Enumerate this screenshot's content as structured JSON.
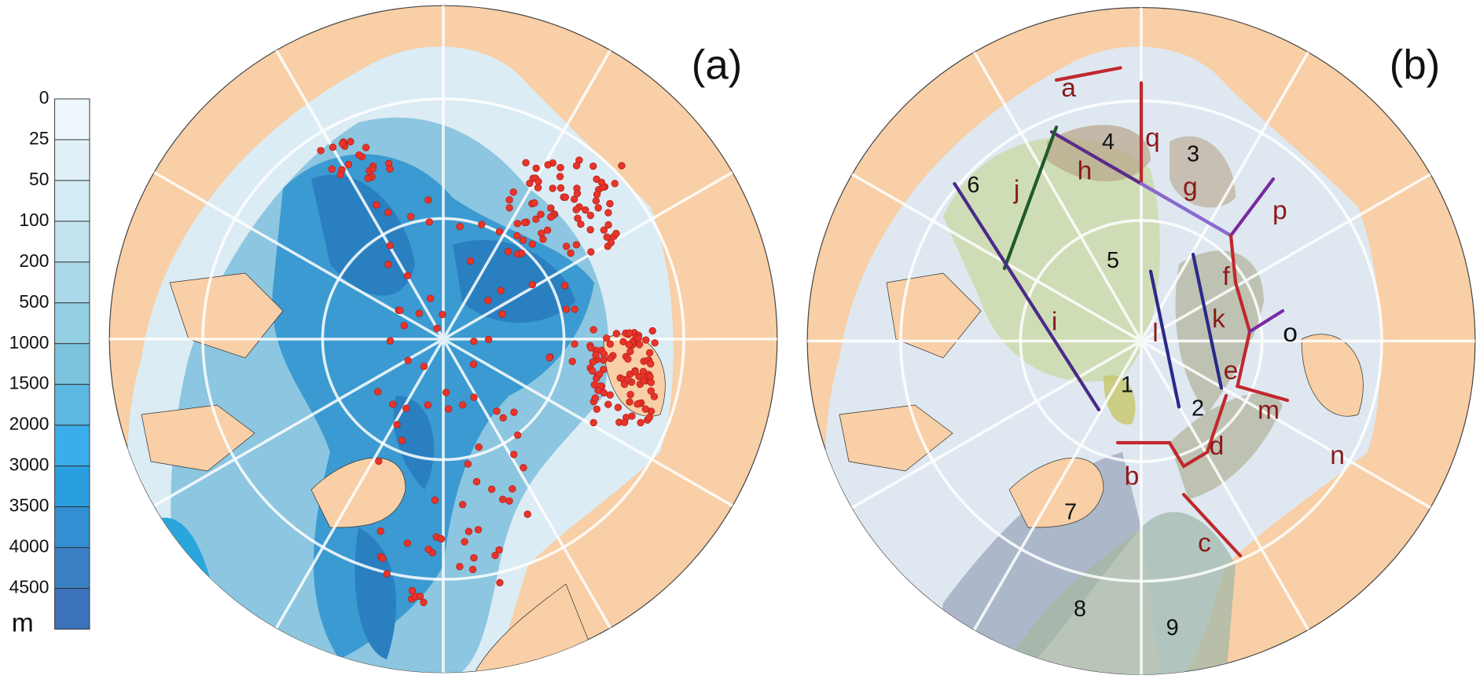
{
  "colorbar": {
    "labels": [
      0,
      25,
      50,
      100,
      200,
      500,
      1000,
      1500,
      2000,
      3000,
      3500,
      4000,
      4500
    ],
    "unit": "m"
  },
  "panels": [
    {
      "label": "(a)"
    },
    {
      "label": "(b)",
      "regions": [
        "1",
        "2",
        "3",
        "4",
        "5",
        "6",
        "7",
        "8",
        "9"
      ],
      "sections": [
        "a",
        "b",
        "c",
        "d",
        "e",
        "f",
        "g",
        "h",
        "i",
        "j",
        "k",
        "l",
        "m",
        "n",
        "o",
        "p",
        "q"
      ]
    }
  ]
}
